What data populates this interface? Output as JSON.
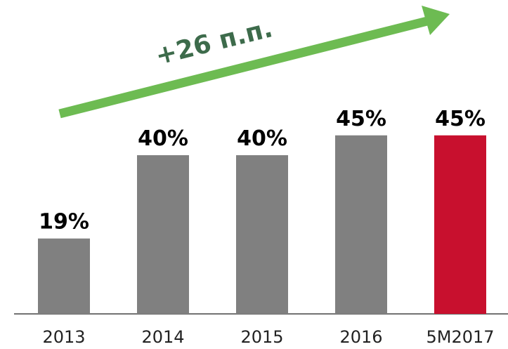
{
  "chart_data": {
    "type": "bar",
    "annotation": "+26 п.п.",
    "categories": [
      "2013",
      "2014",
      "2015",
      "2016",
      "5M2017"
    ],
    "values": [
      19,
      40,
      40,
      45,
      45
    ],
    "value_labels": [
      "19%",
      "40%",
      "40%",
      "45%",
      "45%"
    ],
    "colors": [
      "#808080",
      "#808080",
      "#808080",
      "#808080",
      "#c8102e"
    ]
  }
}
